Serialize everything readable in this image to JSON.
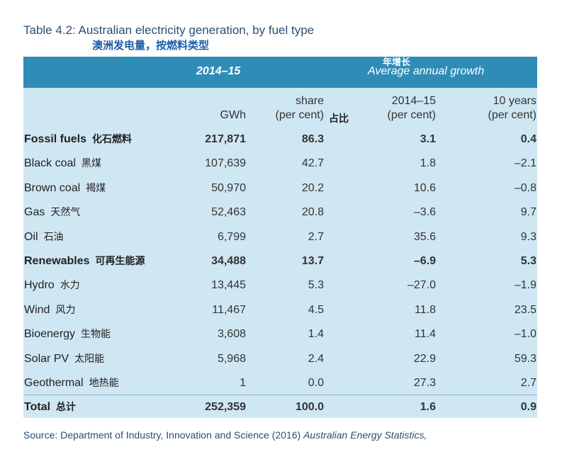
{
  "title": "Table 4.2: Australian electricity generation, by fuel type",
  "title_zh": "澳洲发电量，按燃料类型",
  "header": {
    "period": "2014–15",
    "growth_zh": "年增长",
    "growth": "Average annual growth"
  },
  "subheader": {
    "gwh": "GWh",
    "share": "share",
    "share_unit": "(per cent)",
    "share_zh": "占比",
    "growth_year": "2014–15",
    "growth_year_unit": "(per cent)",
    "growth_10": "10 years",
    "growth_10_unit": "(per cent)"
  },
  "rows": [
    {
      "label": "Fossil fuels",
      "label_zh": "化石燃料",
      "gwh": "217,871",
      "share": "86.3",
      "growth_year": "3.1",
      "growth_10": "0.4",
      "bold": true
    },
    {
      "label": "Black coal",
      "label_zh": "黑煤",
      "gwh": "107,639",
      "share": "42.7",
      "growth_year": "1.8",
      "growth_10": "–2.1"
    },
    {
      "label": "Brown coal",
      "label_zh": "褐煤",
      "gwh": "50,970",
      "share": "20.2",
      "growth_year": "10.6",
      "growth_10": "–0.8"
    },
    {
      "label": "Gas",
      "label_zh": "天然气",
      "gwh": "52,463",
      "share": "20.8",
      "growth_year": "–3.6",
      "growth_10": "9.7"
    },
    {
      "label": "Oil",
      "label_zh": "石油",
      "gwh": "6,799",
      "share": "2.7",
      "growth_year": "35.6",
      "growth_10": "9.3"
    },
    {
      "label": "Renewables",
      "label_zh": "可再生能源",
      "gwh": "34,488",
      "share": "13.7",
      "growth_year": "–6.9",
      "growth_10": "5.3",
      "bold": true
    },
    {
      "label": "Hydro",
      "label_zh": "水力",
      "gwh": "13,445",
      "share": "5.3",
      "growth_year": "–27.0",
      "growth_10": "–1.9"
    },
    {
      "label": "Wind",
      "label_zh": "风力",
      "gwh": "11,467",
      "share": "4.5",
      "growth_year": "11.8",
      "growth_10": "23.5"
    },
    {
      "label": "Bioenergy",
      "label_zh": "生物能",
      "gwh": "3,608",
      "share": "1.4",
      "growth_year": "11.4",
      "growth_10": "–1.0"
    },
    {
      "label": "Solar PV",
      "label_zh": "太阳能",
      "gwh": "5,968",
      "share": "2.4",
      "growth_year": "22.9",
      "growth_10": "59.3"
    },
    {
      "label": "Geothermal",
      "label_zh": "地热能",
      "gwh": "1",
      "share": "0.0",
      "growth_year": "27.3",
      "growth_10": "2.7"
    },
    {
      "label": "Total",
      "label_zh": "总计",
      "gwh": "252,359",
      "share": "100.0",
      "growth_year": "1.6",
      "growth_10": "0.9",
      "bold": true
    }
  ],
  "source": "Source: Department of Industry, Innovation and Science (2016)",
  "source_title": "Australian Energy Statistics,"
}
